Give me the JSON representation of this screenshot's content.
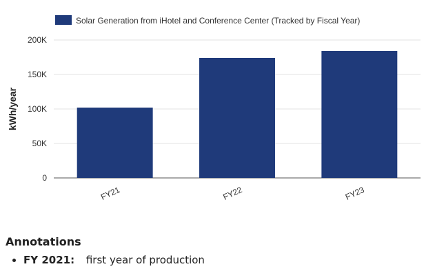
{
  "chart_data": {
    "type": "bar",
    "legend": {
      "label": "Solar Generation from iHotel and Conference Center (Tracked by Fiscal Year)",
      "placement": "top",
      "color": "#1f3a7a"
    },
    "categories": [
      "FY21",
      "FY22",
      "FY23"
    ],
    "series": [
      {
        "name": "Solar Generation from iHotel and Conference Center (Tracked by Fiscal Year)",
        "values": [
          102000,
          174000,
          184000
        ],
        "color": "#1f3a7a"
      }
    ],
    "ylabel": "kWh/year",
    "xlabel": "",
    "ylim": [
      0,
      200000
    ],
    "yticks": [
      0,
      50000,
      100000,
      150000,
      200000
    ],
    "ytick_labels": [
      "0",
      "50K",
      "100K",
      "150K",
      "200K"
    ],
    "grid": true
  },
  "annotations": {
    "heading": "Annotations",
    "items": [
      {
        "label": "FY 2021:",
        "text": "first year of production"
      }
    ]
  }
}
